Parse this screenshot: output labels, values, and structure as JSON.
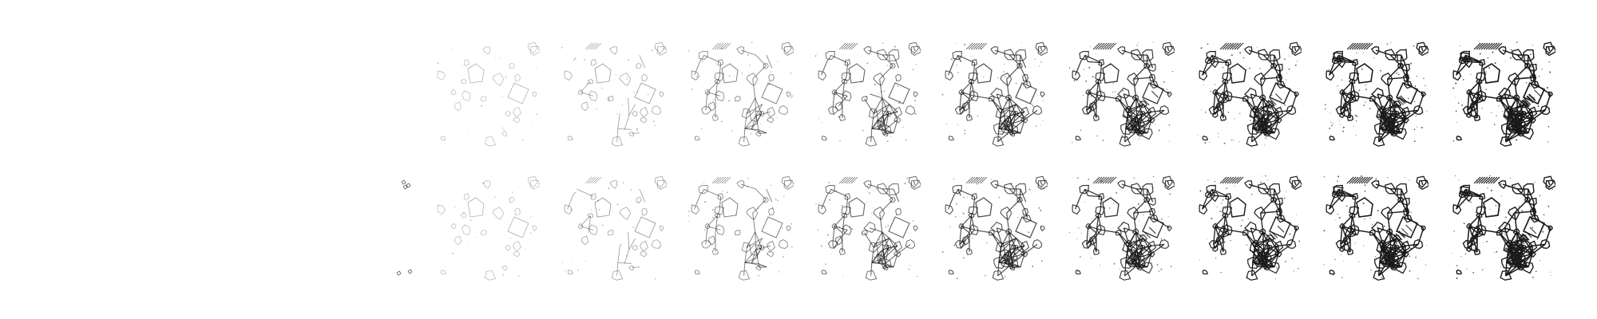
{
  "figure": {
    "background": "#ffffff",
    "ink_color": "#1a1a1a",
    "rows": [
      {
        "name": "row-top",
        "panels": [
          {
            "step": 1,
            "density": 0.0
          },
          {
            "step": 2,
            "density": 0.12
          },
          {
            "step": 3,
            "density": 0.22
          },
          {
            "step": 4,
            "density": 0.34
          },
          {
            "step": 5,
            "density": 0.46
          },
          {
            "step": 6,
            "density": 0.58
          },
          {
            "step": 7,
            "density": 0.7
          },
          {
            "step": 8,
            "density": 0.8
          },
          {
            "step": 9,
            "density": 0.9
          },
          {
            "step": 10,
            "density": 1.0
          }
        ]
      },
      {
        "name": "row-bottom",
        "panels": [
          {
            "step": 1,
            "density": 0.03
          },
          {
            "step": 2,
            "density": 0.13
          },
          {
            "step": 3,
            "density": 0.23
          },
          {
            "step": 4,
            "density": 0.35
          },
          {
            "step": 5,
            "density": 0.47
          },
          {
            "step": 6,
            "density": 0.59
          },
          {
            "step": 7,
            "density": 0.7
          },
          {
            "step": 8,
            "density": 0.8
          },
          {
            "step": 9,
            "density": 0.89
          },
          {
            "step": 10,
            "density": 0.98
          }
        ]
      }
    ]
  }
}
